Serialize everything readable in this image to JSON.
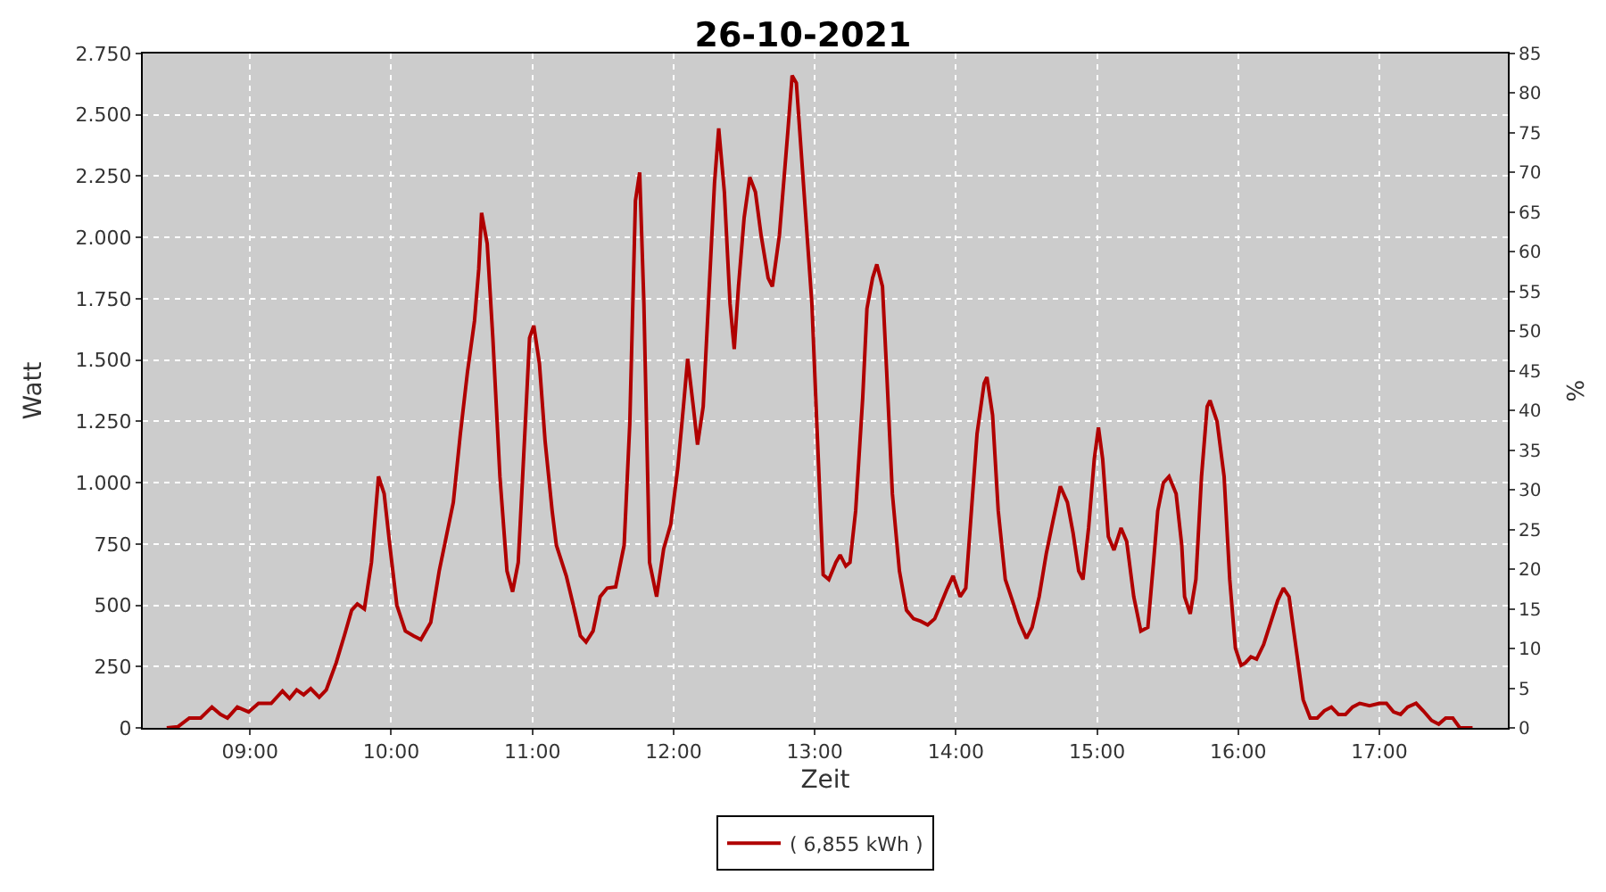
{
  "chart_data": {
    "type": "line",
    "title": "26-10-2021",
    "xlabel": "Zeit",
    "ylabel": "Watt",
    "y2label": "%",
    "x": [
      8.41,
      8.49,
      8.57,
      8.65,
      8.73,
      8.79,
      8.84,
      8.91,
      8.99,
      9.06,
      9.15,
      9.23,
      9.28,
      9.33,
      9.38,
      9.43,
      9.49,
      9.54,
      9.61,
      9.67,
      9.72,
      9.76,
      9.81,
      9.86,
      9.91,
      9.95,
      9.99,
      10.04,
      10.1,
      10.16,
      10.21,
      10.28,
      10.34,
      10.39,
      10.44,
      10.49,
      10.54,
      10.59,
      10.62,
      10.64,
      10.68,
      10.72,
      10.77,
      10.82,
      10.86,
      10.9,
      10.95,
      10.98,
      11.01,
      11.05,
      11.09,
      11.14,
      11.17,
      11.24,
      11.29,
      11.34,
      11.38,
      11.43,
      11.48,
      11.53,
      11.59,
      11.65,
      11.69,
      11.73,
      11.76,
      11.79,
      11.83,
      11.88,
      11.93,
      11.98,
      12.03,
      12.07,
      12.1,
      12.14,
      12.17,
      12.21,
      12.25,
      12.29,
      12.32,
      12.36,
      12.4,
      12.43,
      12.46,
      12.5,
      12.54,
      12.58,
      12.62,
      12.67,
      12.7,
      12.75,
      12.81,
      12.84,
      12.87,
      12.92,
      12.98,
      13.02,
      13.06,
      13.1,
      13.15,
      13.18,
      13.22,
      13.25,
      13.29,
      13.34,
      13.37,
      13.41,
      13.44,
      13.48,
      13.51,
      13.55,
      13.6,
      13.65,
      13.7,
      13.75,
      13.8,
      13.85,
      13.89,
      13.94,
      13.98,
      14.03,
      14.07,
      14.11,
      14.15,
      14.2,
      14.22,
      14.26,
      14.3,
      14.35,
      14.4,
      14.45,
      14.5,
      14.54,
      14.59,
      14.64,
      14.69,
      14.74,
      14.79,
      14.83,
      14.87,
      14.9,
      14.94,
      14.98,
      15.01,
      15.04,
      15.08,
      15.12,
      15.17,
      15.21,
      15.26,
      15.31,
      15.36,
      15.4,
      15.43,
      15.47,
      15.51,
      15.56,
      15.6,
      15.62,
      15.66,
      15.7,
      15.74,
      15.78,
      15.8,
      15.85,
      15.9,
      15.94,
      15.98,
      16.02,
      16.05,
      16.09,
      16.13,
      16.18,
      16.23,
      16.28,
      16.32,
      16.36,
      16.41,
      16.46,
      16.51,
      16.56,
      16.61,
      16.66,
      16.71,
      16.76,
      16.81,
      16.86,
      16.93,
      17.0,
      17.05,
      17.1,
      17.15,
      17.2,
      17.26,
      17.31,
      17.37,
      17.42,
      17.47,
      17.52,
      17.57,
      17.66
    ],
    "series": [
      {
        "name": "( 6,855 kWh )",
        "color": "#b00000",
        "values": [
          0,
          5,
          40,
          40,
          85,
          55,
          40,
          85,
          65,
          100,
          100,
          150,
          120,
          155,
          135,
          160,
          125,
          155,
          265,
          380,
          480,
          505,
          485,
          675,
          1025,
          955,
          745,
          500,
          395,
          375,
          360,
          430,
          640,
          780,
          920,
          1200,
          1450,
          1660,
          1870,
          2100,
          1975,
          1590,
          1025,
          640,
          555,
          675,
          1240,
          1590,
          1640,
          1485,
          1170,
          885,
          745,
          620,
          500,
          375,
          350,
          395,
          535,
          570,
          575,
          745,
          1240,
          2150,
          2265,
          1730,
          675,
          535,
          730,
          830,
          1060,
          1310,
          1505,
          1310,
          1155,
          1310,
          1765,
          2220,
          2445,
          2185,
          1730,
          1545,
          1800,
          2080,
          2245,
          2185,
          2010,
          1835,
          1800,
          2010,
          2435,
          2660,
          2630,
          2220,
          1730,
          1170,
          625,
          605,
          675,
          705,
          660,
          675,
          885,
          1345,
          1710,
          1835,
          1890,
          1800,
          1450,
          955,
          640,
          480,
          445,
          435,
          420,
          445,
          500,
          570,
          620,
          535,
          570,
          885,
          1200,
          1405,
          1430,
          1275,
          885,
          605,
          520,
          430,
          365,
          410,
          535,
          710,
          850,
          985,
          920,
          795,
          640,
          605,
          815,
          1095,
          1225,
          1095,
          780,
          725,
          815,
          760,
          535,
          395,
          410,
          675,
          885,
          1000,
          1025,
          955,
          745,
          535,
          465,
          605,
          1025,
          1310,
          1335,
          1250,
          1025,
          605,
          325,
          255,
          265,
          290,
          280,
          340,
          430,
          520,
          570,
          535,
          325,
          115,
          40,
          40,
          70,
          85,
          55,
          55,
          85,
          100,
          90,
          100,
          100,
          65,
          55,
          85,
          100,
          70,
          30,
          15,
          40,
          40,
          0,
          0
        ]
      }
    ],
    "xlim": [
      8.24,
      17.91
    ],
    "xticks": [
      {
        "value": 9,
        "label": "09:00"
      },
      {
        "value": 10,
        "label": "10:00"
      },
      {
        "value": 11,
        "label": "11:00"
      },
      {
        "value": 12,
        "label": "12:00"
      },
      {
        "value": 13,
        "label": "13:00"
      },
      {
        "value": 14,
        "label": "14:00"
      },
      {
        "value": 15,
        "label": "15:00"
      },
      {
        "value": 16,
        "label": "16:00"
      },
      {
        "value": 17,
        "label": "17:00"
      }
    ],
    "ylim": [
      0,
      2750
    ],
    "yticks": [
      0,
      250,
      500,
      750,
      {
        "value": 1000,
        "label": "1.000"
      },
      {
        "value": 1250,
        "label": "1.250"
      },
      {
        "value": 1500,
        "label": "1.500"
      },
      {
        "value": 1750,
        "label": "1.750"
      },
      {
        "value": 2000,
        "label": "2.000"
      },
      {
        "value": 2250,
        "label": "2.250"
      },
      {
        "value": 2500,
        "label": "2.500"
      },
      {
        "value": 2750,
        "label": "2.750"
      }
    ],
    "y2lim": [
      0,
      85
    ],
    "y2ticks": [
      0,
      5,
      10,
      15,
      20,
      25,
      30,
      35,
      40,
      45,
      50,
      55,
      60,
      65,
      70,
      75,
      80,
      85
    ],
    "grid": true,
    "legend": "bottom",
    "marker": "none",
    "line_style": "solid"
  }
}
